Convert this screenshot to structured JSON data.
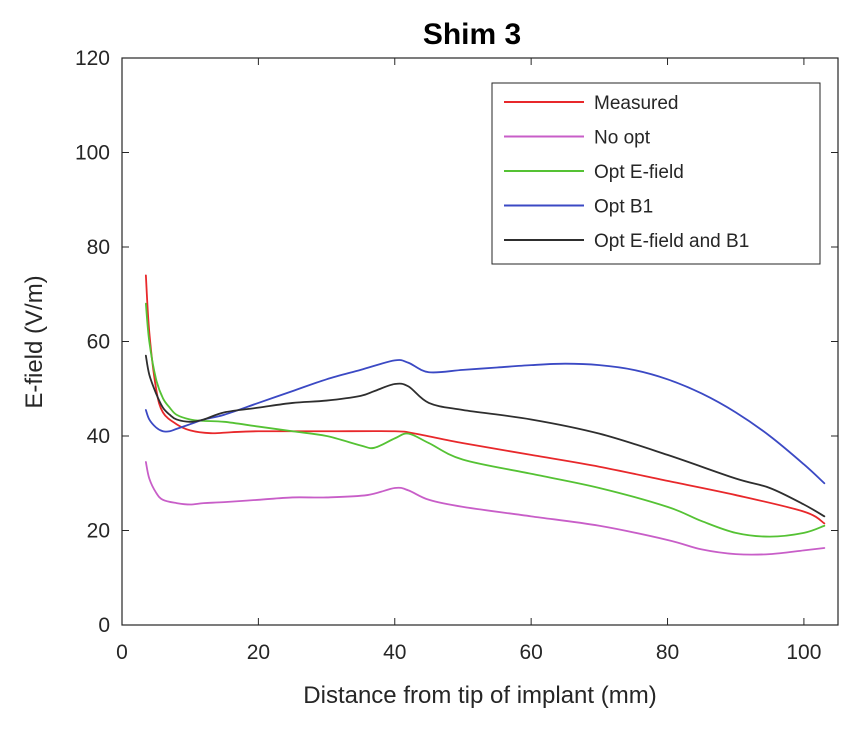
{
  "chart_data": {
    "type": "line",
    "title": "Shim 3",
    "xlabel": "Distance from tip of implant (mm)",
    "ylabel": "E-field (V/m)",
    "xlim": [
      0,
      105
    ],
    "ylim": [
      0,
      120
    ],
    "xticks": [
      0,
      20,
      40,
      60,
      80,
      100
    ],
    "yticks": [
      0,
      20,
      40,
      60,
      80,
      100,
      120
    ],
    "legend_position": "top-right",
    "series": [
      {
        "name": "Measured",
        "color": "#e8282b",
        "x": [
          3.5,
          4,
          5,
          6,
          8,
          10,
          13,
          16,
          20,
          30,
          40,
          43,
          50,
          60,
          70,
          80,
          90,
          100,
          103
        ],
        "y": [
          74,
          62,
          50,
          45,
          42.5,
          41.2,
          40.6,
          40.8,
          41,
          41,
          41,
          40.5,
          38.5,
          36,
          33.5,
          30.5,
          27.5,
          24,
          21.5
        ]
      },
      {
        "name": "No opt",
        "color": "#c85ec8",
        "x": [
          3.5,
          4,
          5,
          6,
          8,
          10,
          12,
          15,
          20,
          25,
          30,
          36,
          40,
          42,
          45,
          50,
          60,
          70,
          80,
          85,
          90,
          95,
          100,
          103
        ],
        "y": [
          34.5,
          31,
          28,
          26.5,
          25.8,
          25.5,
          25.8,
          26,
          26.5,
          27,
          27,
          27.5,
          29,
          28.5,
          26.5,
          25,
          23,
          21,
          18,
          16,
          15,
          15,
          15.8,
          16.3
        ]
      },
      {
        "name": "Opt E-field",
        "color": "#55c234",
        "x": [
          3.5,
          4,
          5,
          6,
          7,
          8,
          10,
          12,
          15,
          20,
          25,
          30,
          35,
          37,
          40,
          42,
          45,
          50,
          60,
          70,
          80,
          85,
          90,
          95,
          100,
          103
        ],
        "y": [
          68,
          60,
          52,
          48,
          46,
          44.5,
          43.5,
          43.2,
          43,
          42,
          41,
          40,
          38,
          37.5,
          39.5,
          40.5,
          38.5,
          35,
          32,
          29,
          25,
          22,
          19.5,
          18.7,
          19.5,
          21
        ]
      },
      {
        "name": "Opt B1",
        "color": "#3b49c4",
        "x": [
          3.5,
          4,
          5,
          6,
          7,
          8,
          10,
          12,
          15,
          20,
          25,
          30,
          35,
          40,
          42,
          45,
          50,
          55,
          60,
          65,
          70,
          75,
          80,
          85,
          90,
          95,
          100,
          103
        ],
        "y": [
          45.5,
          43.5,
          41.8,
          41,
          41,
          41.5,
          42.5,
          43.5,
          44.5,
          47,
          49.5,
          52,
          54,
          56,
          55.5,
          53.5,
          54,
          54.5,
          55,
          55.3,
          55,
          54,
          52,
          49,
          45,
          40,
          34,
          30
        ]
      },
      {
        "name": "Opt E-field and B1",
        "color": "#2e2e2e",
        "x": [
          3.5,
          4,
          5,
          6,
          7,
          8,
          10,
          12,
          15,
          20,
          25,
          30,
          35,
          37,
          40,
          42,
          45,
          50,
          60,
          70,
          80,
          90,
          95,
          100,
          103
        ],
        "y": [
          57,
          53,
          49,
          46,
          44.5,
          43.5,
          43,
          43.5,
          45,
          46,
          47,
          47.5,
          48.5,
          49.5,
          51,
          50.5,
          47,
          45.5,
          43.5,
          40.5,
          36,
          31,
          29,
          25.5,
          23
        ]
      }
    ]
  }
}
